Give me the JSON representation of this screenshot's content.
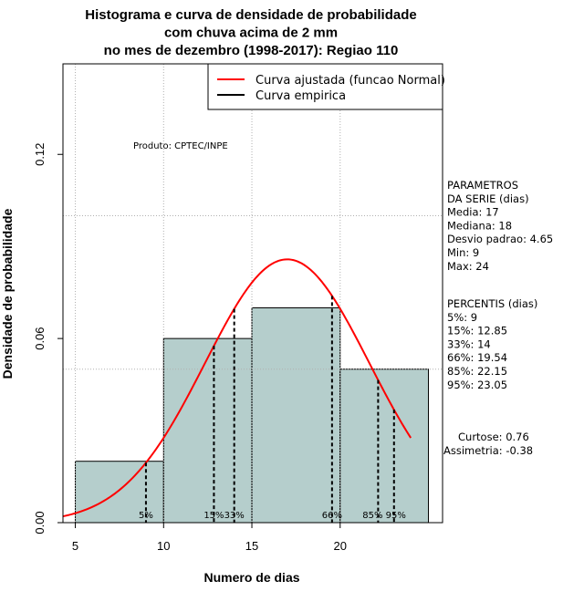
{
  "chart_data": {
    "type": "histogram",
    "title_lines": [
      "Histograma e curva de densidade de probabilidade",
      "com chuva acima de 2 mm",
      "no mes de dezembro (1998-2017): Regiao 110"
    ],
    "xlabel": "Numero de dias",
    "ylabel": "Densidade de probabilidade",
    "xlim": [
      4.3,
      25.8
    ],
    "ylim": [
      0.0,
      0.1495
    ],
    "x_ticks": [
      5,
      10,
      15,
      20
    ],
    "y_ticks": [
      0.0,
      0.06,
      0.12
    ],
    "y_tick_labels": [
      "0.00",
      "0.06",
      "0.12"
    ],
    "grid": true,
    "grid_y": [
      0.0,
      0.05,
      0.1
    ],
    "grid_x": [
      5,
      10,
      15,
      20
    ],
    "bins": [
      {
        "x0": 5,
        "x1": 10,
        "density": 0.02
      },
      {
        "x0": 10,
        "x1": 15,
        "density": 0.06
      },
      {
        "x0": 15,
        "x1": 20,
        "density": 0.07
      },
      {
        "x0": 20,
        "x1": 25,
        "density": 0.05
      }
    ],
    "bar_color": "#b5cecc",
    "curve_color": "#ff0000",
    "normal_fit": {
      "mean": 17.0,
      "sd": 4.65,
      "x_from": 4.3,
      "x_to": 24.0
    },
    "percentile_lines": [
      {
        "x": 9,
        "label": "5%"
      },
      {
        "x": 12.85,
        "label": "15%"
      },
      {
        "x": 14,
        "label": "33%"
      },
      {
        "x": 19.54,
        "label": "66%"
      },
      {
        "x": 22.15,
        "label": "85%"
      },
      {
        "x": 23.05,
        "label": "95%"
      }
    ],
    "legend": {
      "position": "top-right",
      "entries": [
        {
          "label": "Curva ajustada (funcao Normal)",
          "color": "#ff0000"
        },
        {
          "label": "Curva empirica",
          "color": "#000000"
        }
      ]
    },
    "annotation": "Produto: CPTEC/INPE"
  },
  "side_panel": {
    "params_lines": [
      "PARAMETROS",
      "DA SERIE (dias)",
      "   Media: 17",
      "   Mediana: 18",
      "   Desvio padrao: 4.65",
      "   Min: 9",
      "   Max: 24"
    ],
    "percentis_lines": [
      "PERCENTIS (dias)",
      "   5%: 9",
      "   15%: 12.85",
      "   33%: 14",
      "   66%: 19.54",
      "   85%: 22.15",
      "   95%: 23.05"
    ],
    "curtose": "Curtose: 0.76",
    "assimetria": "Assimetria: -0.38"
  }
}
